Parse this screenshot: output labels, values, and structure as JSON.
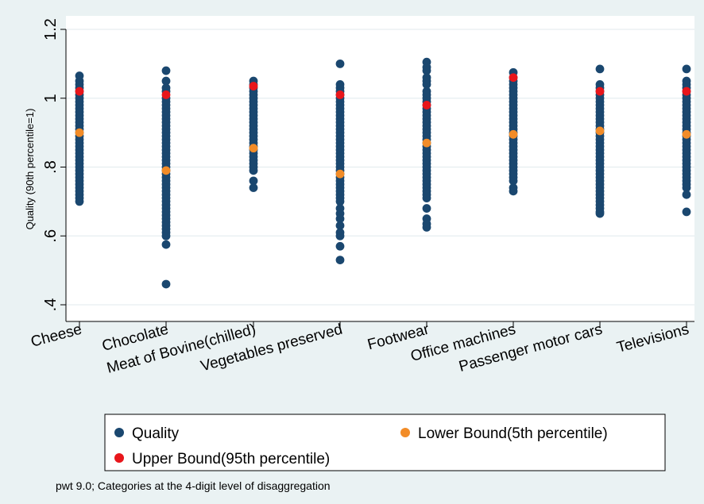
{
  "chart_data": {
    "type": "scatter",
    "ylabel": "Quality (90th percentile=1)",
    "ylim": [
      0.4,
      1.2
    ],
    "yticks": [
      0.4,
      0.6,
      0.8,
      1,
      1.2
    ],
    "ytick_labels": [
      ".4",
      ".6",
      ".8",
      "1",
      "1.2"
    ],
    "grid": true,
    "legend_position": "bottom",
    "categories": [
      "Cheese",
      "Chocolate",
      "Meat of Bovine(chilled)",
      "Vegetables preserved",
      "Footwear",
      "Office machines",
      "Passenger motor cars",
      "Televisions"
    ],
    "series": [
      {
        "name": "Quality",
        "color": "#1a476f",
        "values": [
          [
            1.065,
            1.05,
            1.04,
            1.03,
            1.02,
            1.01,
            1.0,
            0.99,
            0.98,
            0.97,
            0.96,
            0.95,
            0.94,
            0.93,
            0.92,
            0.91,
            0.9,
            0.89,
            0.88,
            0.87,
            0.86,
            0.85,
            0.84,
            0.83,
            0.82,
            0.81,
            0.8,
            0.79,
            0.78,
            0.77,
            0.76,
            0.75,
            0.74,
            0.73,
            0.72,
            0.71,
            0.7
          ],
          [
            1.08,
            1.05,
            1.03,
            1.02,
            1.0,
            0.99,
            0.98,
            0.97,
            0.96,
            0.95,
            0.94,
            0.93,
            0.92,
            0.91,
            0.9,
            0.89,
            0.88,
            0.87,
            0.86,
            0.85,
            0.84,
            0.83,
            0.82,
            0.81,
            0.8,
            0.79,
            0.78,
            0.77,
            0.76,
            0.75,
            0.74,
            0.73,
            0.72,
            0.71,
            0.7,
            0.69,
            0.68,
            0.67,
            0.66,
            0.65,
            0.64,
            0.63,
            0.62,
            0.61,
            0.6,
            0.575,
            0.46
          ],
          [
            1.05,
            1.04,
            1.03,
            1.02,
            1.01,
            1.0,
            0.99,
            0.98,
            0.97,
            0.96,
            0.95,
            0.94,
            0.93,
            0.92,
            0.91,
            0.9,
            0.89,
            0.88,
            0.87,
            0.86,
            0.85,
            0.84,
            0.83,
            0.82,
            0.81,
            0.8,
            0.79,
            0.76,
            0.74
          ],
          [
            1.1,
            1.04,
            1.03,
            1.02,
            1.01,
            1.0,
            0.99,
            0.98,
            0.97,
            0.96,
            0.95,
            0.94,
            0.93,
            0.92,
            0.91,
            0.9,
            0.89,
            0.88,
            0.87,
            0.86,
            0.85,
            0.84,
            0.83,
            0.82,
            0.81,
            0.8,
            0.79,
            0.78,
            0.77,
            0.76,
            0.75,
            0.74,
            0.73,
            0.72,
            0.71,
            0.7,
            0.68,
            0.665,
            0.65,
            0.63,
            0.61,
            0.6,
            0.57,
            0.53
          ],
          [
            1.105,
            1.09,
            1.08,
            1.06,
            1.05,
            1.04,
            1.02,
            1.01,
            1.0,
            0.99,
            0.98,
            0.97,
            0.96,
            0.95,
            0.94,
            0.93,
            0.92,
            0.91,
            0.9,
            0.89,
            0.88,
            0.87,
            0.86,
            0.85,
            0.84,
            0.83,
            0.82,
            0.81,
            0.8,
            0.79,
            0.78,
            0.77,
            0.76,
            0.75,
            0.74,
            0.73,
            0.72,
            0.71,
            0.68,
            0.65,
            0.635,
            0.625
          ],
          [
            1.075,
            1.06,
            1.05,
            1.04,
            1.03,
            1.02,
            1.01,
            1.0,
            0.99,
            0.98,
            0.97,
            0.96,
            0.95,
            0.94,
            0.93,
            0.92,
            0.91,
            0.9,
            0.89,
            0.88,
            0.87,
            0.86,
            0.85,
            0.84,
            0.83,
            0.82,
            0.81,
            0.8,
            0.79,
            0.78,
            0.77,
            0.76,
            0.74,
            0.73
          ],
          [
            1.085,
            1.04,
            1.03,
            1.02,
            1.01,
            1.0,
            0.99,
            0.98,
            0.97,
            0.96,
            0.95,
            0.94,
            0.93,
            0.92,
            0.91,
            0.9,
            0.89,
            0.88,
            0.87,
            0.86,
            0.85,
            0.84,
            0.83,
            0.82,
            0.81,
            0.8,
            0.79,
            0.78,
            0.77,
            0.76,
            0.75,
            0.74,
            0.73,
            0.72,
            0.71,
            0.7,
            0.69,
            0.68,
            0.67,
            0.665
          ],
          [
            1.085,
            1.05,
            1.04,
            1.03,
            1.02,
            1.01,
            1.0,
            0.99,
            0.98,
            0.97,
            0.96,
            0.95,
            0.94,
            0.93,
            0.92,
            0.91,
            0.9,
            0.89,
            0.88,
            0.87,
            0.86,
            0.85,
            0.84,
            0.83,
            0.82,
            0.81,
            0.8,
            0.79,
            0.78,
            0.77,
            0.76,
            0.75,
            0.74,
            0.72,
            0.67
          ]
        ]
      },
      {
        "name": "Lower Bound(5th percentile)",
        "color": "#f28c28",
        "values": [
          0.9,
          0.79,
          0.855,
          0.78,
          0.87,
          0.895,
          0.905,
          0.895
        ]
      },
      {
        "name": "Upper Bound(95th percentile)",
        "color": "#e8161b",
        "values": [
          1.02,
          1.01,
          1.035,
          1.01,
          0.98,
          1.06,
          1.02,
          1.02
        ]
      }
    ],
    "note": "pwt 9.0; Categories at the 4-digit level of disaggregation"
  }
}
